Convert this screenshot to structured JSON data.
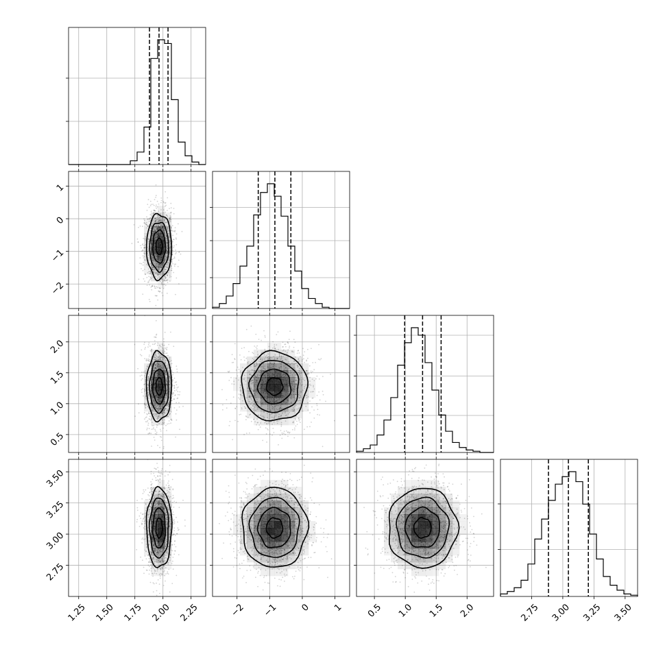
{
  "chart_data": {
    "type": "corner",
    "grid": true,
    "parameters": [
      {
        "range": [
          1.16,
          2.38
        ],
        "mean": 1.966,
        "std": 0.056,
        "quantiles": [
          1.88,
          1.965,
          2.045
        ],
        "ticks": [
          1.25,
          1.5,
          1.75,
          2.0,
          2.25
        ],
        "tick_labels": [
          "1.25",
          "1.50",
          "1.75",
          "2.00",
          "2.25"
        ]
      },
      {
        "range": [
          -2.75,
          1.45
        ],
        "mean": -0.85,
        "std": 0.5,
        "quantiles": [
          -1.35,
          -0.84,
          -0.35
        ],
        "ticks": [
          -2,
          -1,
          0,
          1
        ],
        "tick_labels": [
          "−2",
          "−1",
          "0",
          "1"
        ]
      },
      {
        "range": [
          0.21,
          2.43
        ],
        "mean": 1.28,
        "std": 0.28,
        "quantiles": [
          0.99,
          1.28,
          1.58
        ],
        "ticks": [
          0.5,
          1.0,
          1.5,
          2.0
        ],
        "tick_labels": [
          "0.5",
          "1.0",
          "1.5",
          "2.0"
        ]
      },
      {
        "range": [
          2.5,
          3.6
        ],
        "mean": 3.05,
        "std": 0.16,
        "quantiles": [
          2.885,
          3.045,
          3.205
        ],
        "ticks": [
          2.75,
          3.0,
          3.25,
          3.5
        ],
        "tick_labels": [
          "2.75",
          "3.00",
          "3.25",
          "3.50"
        ]
      }
    ],
    "diagonal_histograms": [
      {
        "bin_range": [
          1.16,
          2.38
        ],
        "bins": 20,
        "counts": [
          0,
          0,
          0,
          0,
          0,
          0,
          0,
          0,
          0,
          0.03,
          0.1,
          0.3,
          0.85,
          1.0,
          0.97,
          0.52,
          0.18,
          0.07,
          0.02,
          0
        ],
        "y_ticks": [
          0.35,
          0.7
        ]
      },
      {
        "bin_range": [
          -2.75,
          1.45
        ],
        "bins": 20,
        "counts": [
          0.01,
          0.04,
          0.1,
          0.2,
          0.34,
          0.5,
          0.75,
          0.93,
          1.0,
          0.9,
          0.74,
          0.5,
          0.3,
          0.16,
          0.08,
          0.04,
          0.01,
          0,
          0,
          0
        ],
        "y_ticks": [
          0.25,
          0.55,
          0.82
        ]
      },
      {
        "bin_range": [
          0.21,
          2.43
        ],
        "bins": 20,
        "counts": [
          0.01,
          0.03,
          0.06,
          0.14,
          0.26,
          0.44,
          0.7,
          0.88,
          1.0,
          0.94,
          0.72,
          0.5,
          0.3,
          0.17,
          0.08,
          0.04,
          0.02,
          0.01,
          0,
          0
        ],
        "y_ticks": [
          0.3,
          0.62,
          0.95
        ]
      },
      {
        "bin_range": [
          2.5,
          3.6
        ],
        "bins": 20,
        "counts": [
          0.02,
          0.04,
          0.07,
          0.13,
          0.26,
          0.46,
          0.62,
          0.77,
          0.9,
          0.96,
          1.0,
          0.92,
          0.74,
          0.5,
          0.3,
          0.16,
          0.09,
          0.05,
          0.02,
          0.01
        ],
        "y_ticks": [
          0.38,
          0.75
        ]
      }
    ],
    "contour_levels_sigma": [
      0.5,
      1.0,
      1.5,
      2.0
    ],
    "scatter_points_per_panel": 1400,
    "colors": {
      "density": "#000000",
      "grid": "#b0b0b0"
    }
  }
}
